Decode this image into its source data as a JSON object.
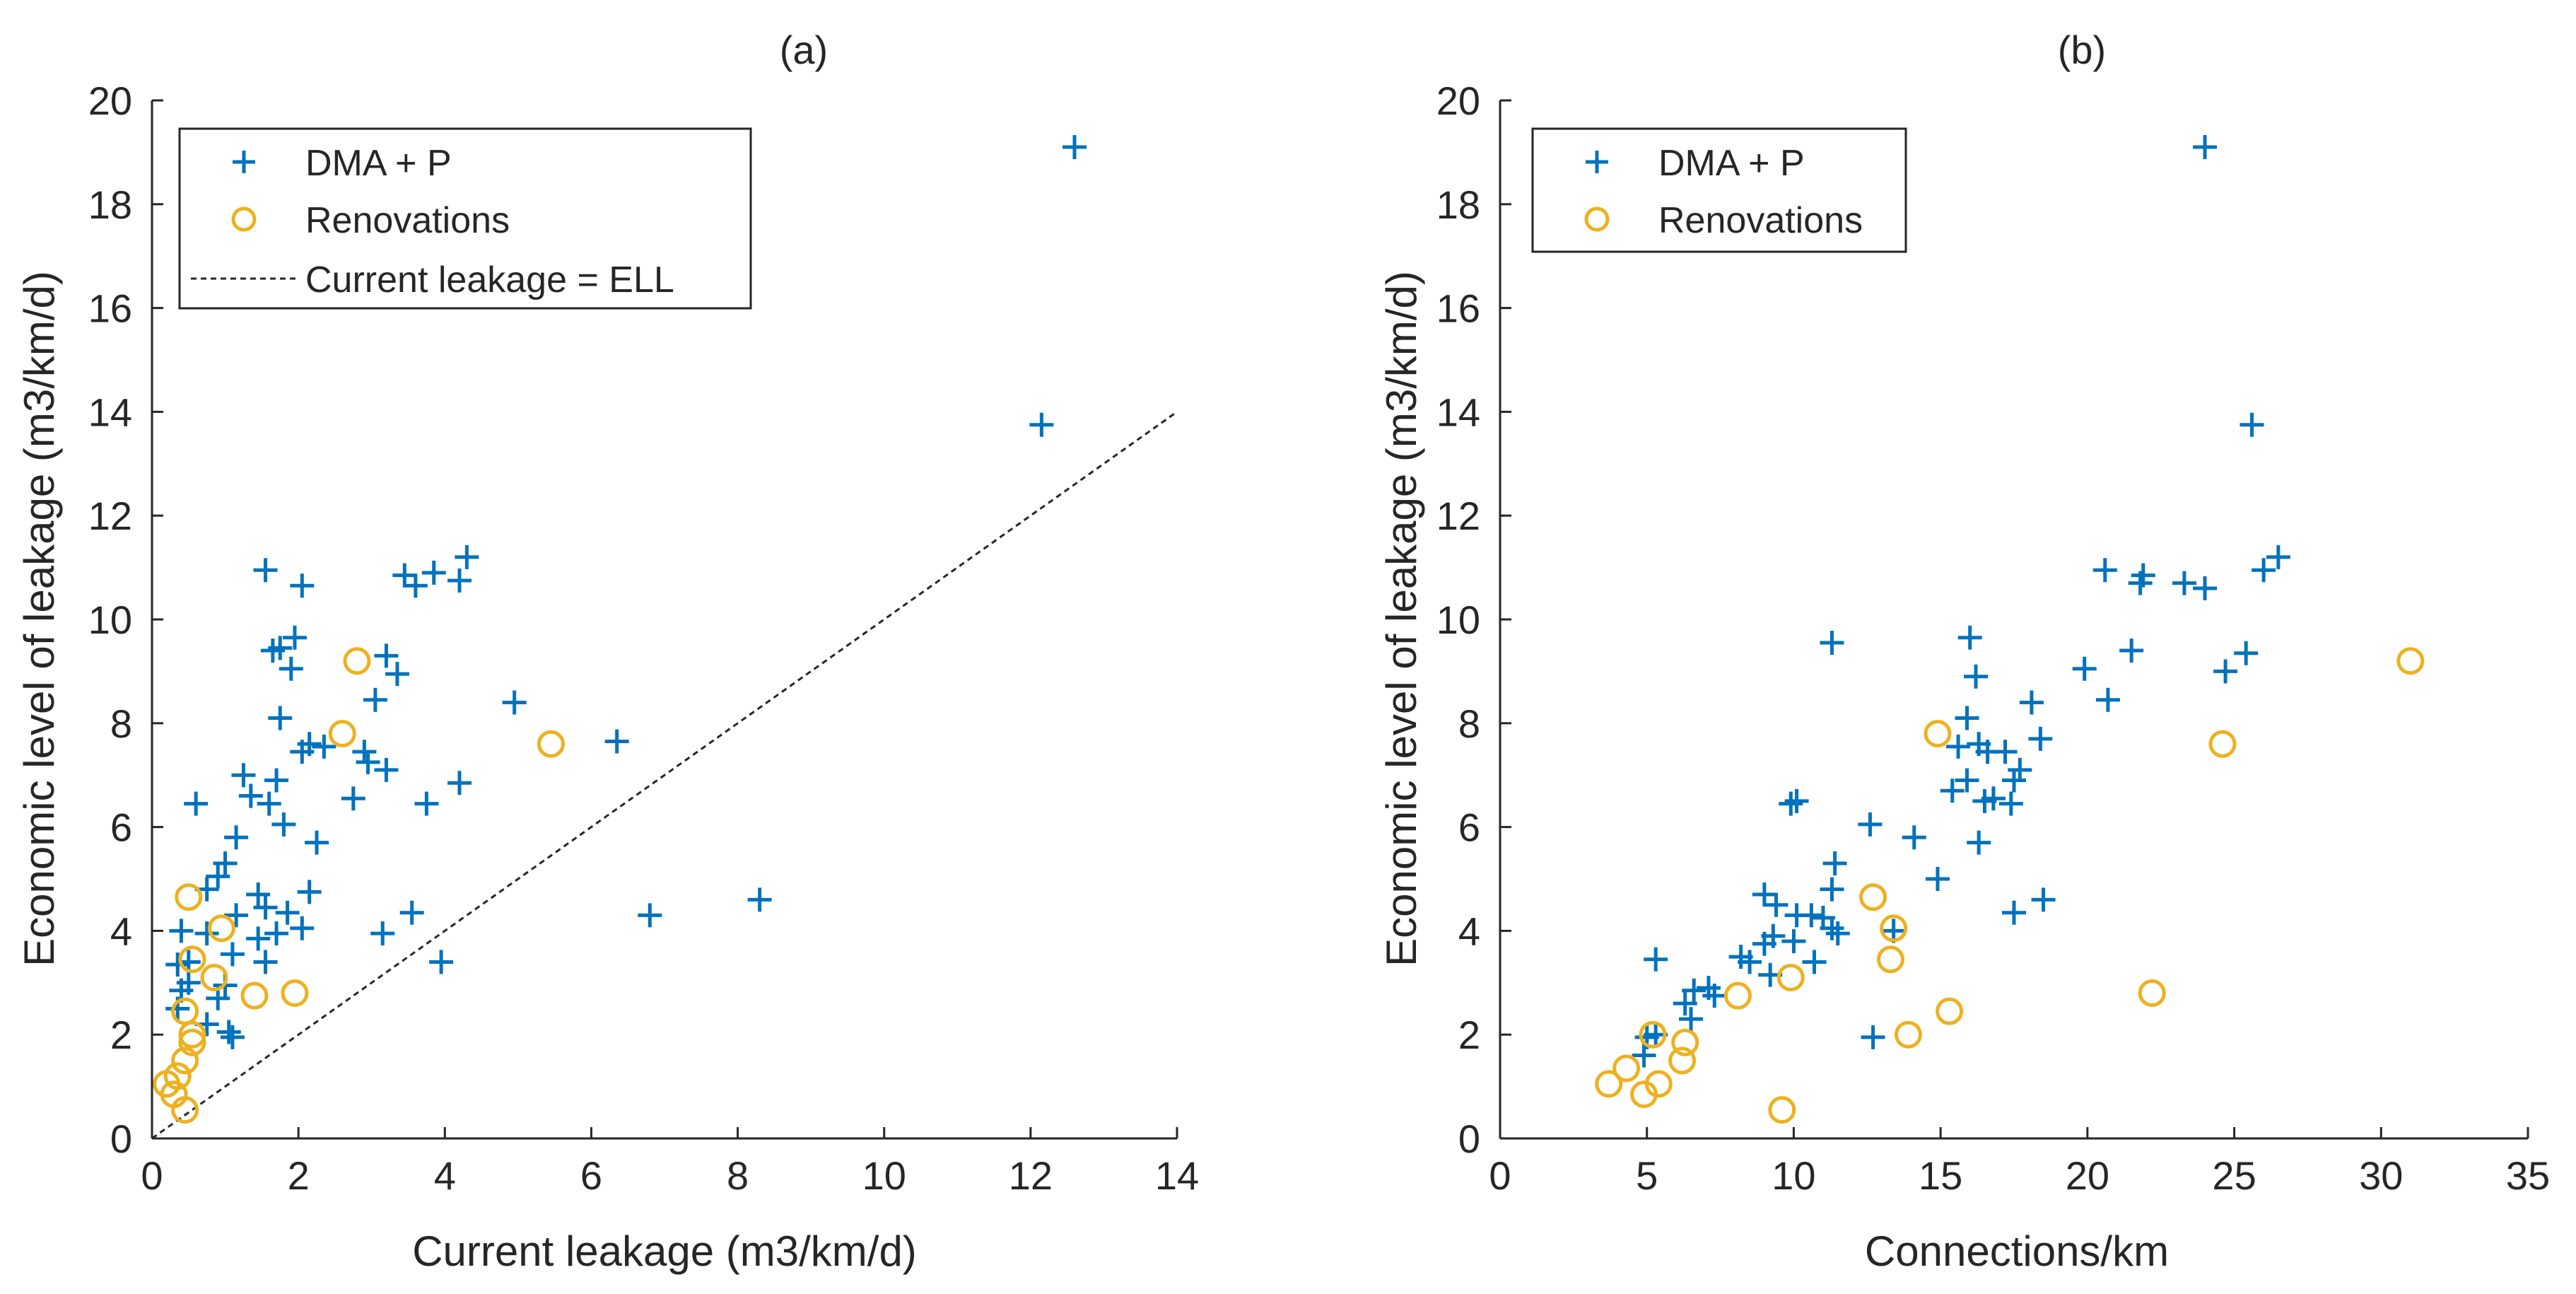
{
  "colors": {
    "dma": "#0072BD",
    "renovation": "#EDB120",
    "axis": "#262626",
    "background": "#FFFFFF"
  },
  "chart_data": [
    {
      "type": "scatter",
      "title": "(a)",
      "xlabel": "Current leakage (m3/km/d)",
      "ylabel": "Economic level of leakage (m3/km/d)",
      "xlim": [
        0,
        14
      ],
      "ylim": [
        0,
        20
      ],
      "xticks": [
        "0",
        "2",
        "4",
        "6",
        "8",
        "10",
        "12",
        "14"
      ],
      "yticks": [
        "0",
        "2",
        "4",
        "6",
        "8",
        "10",
        "12",
        "14",
        "16",
        "18",
        "20"
      ],
      "grid": false,
      "legend": {
        "placement": "top-left",
        "entries": [
          "DMA + P",
          "Renovations",
          "Current leakage = ELL"
        ]
      },
      "reference_line": {
        "name": "Current leakage = ELL",
        "x": [
          0,
          14
        ],
        "y": [
          0,
          14
        ],
        "style": "dotted"
      },
      "series": [
        {
          "name": "DMA + P",
          "marker": "plus",
          "points": [
            [
              12.6,
              19.1
            ],
            [
              12.15,
              13.75
            ],
            [
              4.3,
              11.2
            ],
            [
              4.2,
              10.75
            ],
            [
              3.85,
              10.9
            ],
            [
              3.6,
              10.65
            ],
            [
              3.45,
              10.85
            ],
            [
              1.55,
              10.95
            ],
            [
              2.05,
              10.65
            ],
            [
              1.95,
              9.65
            ],
            [
              1.75,
              9.45
            ],
            [
              1.65,
              9.4
            ],
            [
              1.9,
              9.05
            ],
            [
              3.2,
              9.3
            ],
            [
              3.35,
              8.95
            ],
            [
              3.05,
              8.45
            ],
            [
              1.75,
              8.1
            ],
            [
              4.95,
              8.4
            ],
            [
              2.15,
              7.6
            ],
            [
              2.35,
              7.55
            ],
            [
              2.9,
              7.45
            ],
            [
              2.05,
              7.45
            ],
            [
              2.95,
              7.25
            ],
            [
              3.2,
              7.1
            ],
            [
              6.35,
              7.65
            ],
            [
              4.2,
              6.85
            ],
            [
              1.25,
              7.0
            ],
            [
              1.7,
              6.9
            ],
            [
              1.35,
              6.6
            ],
            [
              1.6,
              6.45
            ],
            [
              0.6,
              6.45
            ],
            [
              2.75,
              6.55
            ],
            [
              3.75,
              6.45
            ],
            [
              1.8,
              6.05
            ],
            [
              1.15,
              5.8
            ],
            [
              2.25,
              5.7
            ],
            [
              1.0,
              5.3
            ],
            [
              0.9,
              5.05
            ],
            [
              0.75,
              4.8
            ],
            [
              1.45,
              4.7
            ],
            [
              2.15,
              4.75
            ],
            [
              1.55,
              4.45
            ],
            [
              1.85,
              4.35
            ],
            [
              1.15,
              4.3
            ],
            [
              0.4,
              4.0
            ],
            [
              0.75,
              3.95
            ],
            [
              1.7,
              3.95
            ],
            [
              2.05,
              4.05
            ],
            [
              1.45,
              3.85
            ],
            [
              3.15,
              3.95
            ],
            [
              1.55,
              3.4
            ],
            [
              1.1,
              3.55
            ],
            [
              0.5,
              3.4
            ],
            [
              0.35,
              3.35
            ],
            [
              3.55,
              4.35
            ],
            [
              3.95,
              3.4
            ],
            [
              6.8,
              4.3
            ],
            [
              8.3,
              4.6
            ],
            [
              0.5,
              3.0
            ],
            [
              1.0,
              2.95
            ],
            [
              0.9,
              2.7
            ],
            [
              0.4,
              2.85
            ],
            [
              0.35,
              2.5
            ],
            [
              0.75,
              2.2
            ],
            [
              1.05,
              2.05
            ],
            [
              1.1,
              1.95
            ]
          ]
        },
        {
          "name": "Renovations",
          "marker": "circle",
          "points": [
            [
              2.8,
              9.2
            ],
            [
              2.6,
              7.8
            ],
            [
              5.45,
              7.6
            ],
            [
              0.5,
              4.65
            ],
            [
              0.95,
              4.05
            ],
            [
              0.55,
              3.45
            ],
            [
              0.85,
              3.1
            ],
            [
              1.4,
              2.75
            ],
            [
              1.95,
              2.8
            ],
            [
              0.45,
              2.45
            ],
            [
              0.55,
              2.0
            ],
            [
              0.55,
              1.85
            ],
            [
              0.45,
              1.5
            ],
            [
              0.35,
              1.2
            ],
            [
              0.2,
              1.05
            ],
            [
              0.3,
              0.85
            ],
            [
              0.45,
              0.55
            ]
          ]
        }
      ]
    },
    {
      "type": "scatter",
      "title": "(b)",
      "xlabel": "Connections/km",
      "ylabel": "Economic level of leakage (m3/km/d)",
      "xlim": [
        0,
        35
      ],
      "ylim": [
        0,
        20
      ],
      "xticks": [
        "0",
        "5",
        "10",
        "15",
        "20",
        "25",
        "30",
        "35"
      ],
      "yticks": [
        "0",
        "2",
        "4",
        "6",
        "8",
        "10",
        "12",
        "14",
        "16",
        "18",
        "20"
      ],
      "grid": false,
      "legend": {
        "placement": "top-left",
        "entries": [
          "DMA + P",
          "Renovations"
        ]
      },
      "series": [
        {
          "name": "DMA + P",
          "marker": "plus",
          "points": [
            [
              24.0,
              19.1
            ],
            [
              25.6,
              13.75
            ],
            [
              26.5,
              11.2
            ],
            [
              26.0,
              10.95
            ],
            [
              23.3,
              10.7
            ],
            [
              24.0,
              10.6
            ],
            [
              21.9,
              10.85
            ],
            [
              20.6,
              10.95
            ],
            [
              21.8,
              10.7
            ],
            [
              11.3,
              9.55
            ],
            [
              16.0,
              9.65
            ],
            [
              21.5,
              9.4
            ],
            [
              25.4,
              9.35
            ],
            [
              24.7,
              9.0
            ],
            [
              19.9,
              9.05
            ],
            [
              16.2,
              8.9
            ],
            [
              20.7,
              8.45
            ],
            [
              18.1,
              8.4
            ],
            [
              15.9,
              8.1
            ],
            [
              15.6,
              7.55
            ],
            [
              16.3,
              7.6
            ],
            [
              16.6,
              7.45
            ],
            [
              18.4,
              7.7
            ],
            [
              17.2,
              7.45
            ],
            [
              17.7,
              7.1
            ],
            [
              17.5,
              6.9
            ],
            [
              15.9,
              6.9
            ],
            [
              15.4,
              6.7
            ],
            [
              16.8,
              6.55
            ],
            [
              17.4,
              6.45
            ],
            [
              16.5,
              6.5
            ],
            [
              9.9,
              6.45
            ],
            [
              10.1,
              6.5
            ],
            [
              12.6,
              6.05
            ],
            [
              16.3,
              5.7
            ],
            [
              14.1,
              5.8
            ],
            [
              11.4,
              5.3
            ],
            [
              14.9,
              5.0
            ],
            [
              11.3,
              4.8
            ],
            [
              9.0,
              4.7
            ],
            [
              9.4,
              4.5
            ],
            [
              18.5,
              4.6
            ],
            [
              17.5,
              4.35
            ],
            [
              10.1,
              4.3
            ],
            [
              10.6,
              4.3
            ],
            [
              11.0,
              4.25
            ],
            [
              11.3,
              4.05
            ],
            [
              11.5,
              3.95
            ],
            [
              9.3,
              3.9
            ],
            [
              9.0,
              3.75
            ],
            [
              10.0,
              3.8
            ],
            [
              10.7,
              3.4
            ],
            [
              9.2,
              3.15
            ],
            [
              8.2,
              3.5
            ],
            [
              8.5,
              3.4
            ],
            [
              5.3,
              3.45
            ],
            [
              7.1,
              2.9
            ],
            [
              6.6,
              2.85
            ],
            [
              7.3,
              2.75
            ],
            [
              6.3,
              2.6
            ],
            [
              6.5,
              2.3
            ],
            [
              12.7,
              1.95
            ],
            [
              5.3,
              2.0
            ],
            [
              5.0,
              1.95
            ],
            [
              4.9,
              1.6
            ],
            [
              13.4,
              4.0
            ]
          ]
        },
        {
          "name": "Renovations",
          "marker": "circle",
          "points": [
            [
              31.0,
              9.2
            ],
            [
              14.9,
              7.8
            ],
            [
              24.6,
              7.6
            ],
            [
              12.7,
              4.65
            ],
            [
              13.4,
              4.05
            ],
            [
              13.3,
              3.45
            ],
            [
              9.9,
              3.1
            ],
            [
              8.1,
              2.75
            ],
            [
              22.2,
              2.8
            ],
            [
              15.3,
              2.45
            ],
            [
              13.9,
              2.0
            ],
            [
              6.3,
              1.85
            ],
            [
              5.2,
              2.0
            ],
            [
              6.2,
              1.5
            ],
            [
              4.3,
              1.35
            ],
            [
              3.7,
              1.05
            ],
            [
              5.4,
              1.05
            ],
            [
              4.9,
              0.85
            ],
            [
              9.6,
              0.55
            ]
          ]
        }
      ]
    }
  ]
}
